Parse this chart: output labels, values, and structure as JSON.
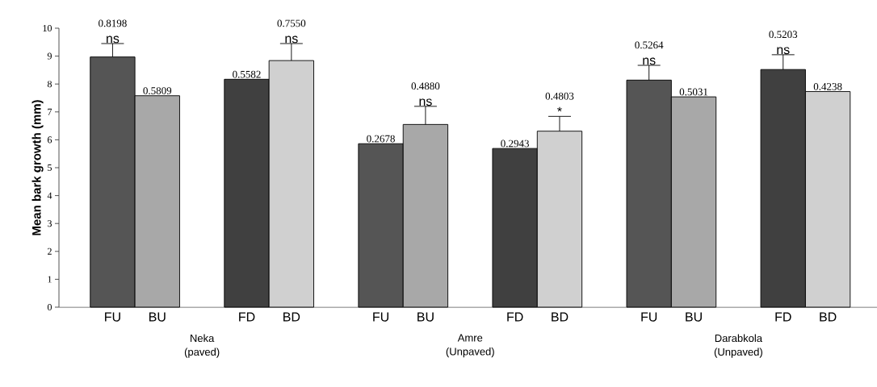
{
  "chart_data": {
    "type": "bar",
    "ylabel": "Mean bark growth (mm)",
    "categories": [
      "FU",
      "BU",
      "FD",
      "BD",
      "FU",
      "BU",
      "FD",
      "BD",
      "FU",
      "BU",
      "FD",
      "BD"
    ],
    "values": [
      8.97,
      7.58,
      8.17,
      8.84,
      5.86,
      6.55,
      5.69,
      6.31,
      8.14,
      7.54,
      8.52,
      7.73
    ],
    "errors": [
      0.48,
      null,
      null,
      0.61,
      null,
      0.65,
      null,
      0.53,
      0.53,
      null,
      0.53,
      null
    ],
    "colors": [
      "#555555",
      "#a8a8a8",
      "#404040",
      "#d0d0d0",
      "#555555",
      "#a8a8a8",
      "#404040",
      "#d0d0d0",
      "#555555",
      "#a8a8a8",
      "#404040",
      "#d0d0d0"
    ],
    "ylim": [
      0,
      10
    ],
    "yticks": [
      0,
      1,
      2,
      3,
      4,
      5,
      6,
      7,
      8,
      9,
      10
    ],
    "annotations": [
      "0.8198",
      "0.5809",
      "0.5582",
      "0.7550",
      "0.2678",
      "0.4880",
      "0.2943",
      "0.4803",
      "0.5264",
      "0.5031",
      "0.5203",
      "0.4238",
      "ns",
      "ns",
      "ns",
      "*",
      "ns",
      "ns",
      "Neka (paved)",
      "Amre (Unpaved)",
      "Darabkola (Unpaved)"
    ]
  }
}
